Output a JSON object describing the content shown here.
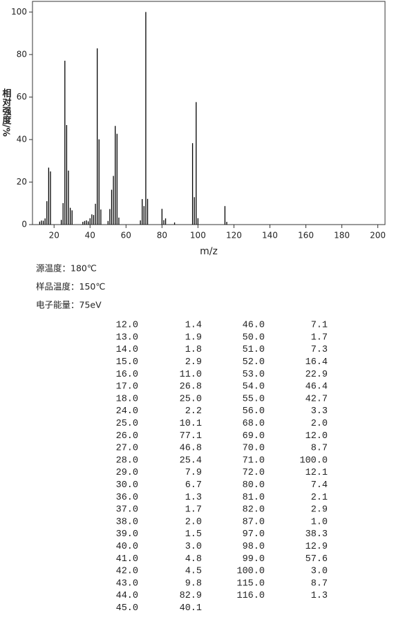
{
  "chart_data": {
    "type": "bar",
    "y_label": "相对强度/%",
    "x_label": "m/z",
    "color": "#000000",
    "xlim": [
      8,
      204
    ],
    "ylim": [
      0,
      105
    ],
    "xticks": [
      20,
      40,
      60,
      80,
      100,
      120,
      140,
      160,
      180,
      200
    ],
    "yticks": [
      0,
      20,
      40,
      60,
      80,
      100
    ],
    "x": [
      12,
      13,
      14,
      15,
      16,
      17,
      18,
      24,
      25,
      26,
      27,
      28,
      29,
      30,
      36,
      37,
      38,
      39,
      40,
      41,
      42,
      43,
      44,
      45,
      46,
      50,
      51,
      52,
      53,
      54,
      55,
      56,
      68,
      69,
      70,
      71,
      72,
      80,
      81,
      82,
      87,
      97,
      98,
      99,
      100,
      115,
      116
    ],
    "values": [
      1.4,
      1.9,
      1.8,
      2.9,
      11.0,
      26.8,
      25.0,
      2.2,
      10.1,
      77.1,
      46.8,
      25.4,
      7.9,
      6.7,
      1.3,
      1.7,
      2.0,
      1.5,
      3.0,
      4.8,
      4.5,
      9.8,
      82.9,
      40.1,
      7.1,
      1.7,
      7.3,
      16.4,
      22.9,
      46.4,
      42.7,
      3.3,
      2.0,
      12.0,
      8.7,
      100.0,
      12.1,
      7.4,
      2.1,
      2.9,
      1.0,
      38.3,
      12.9,
      57.6,
      3.0,
      8.7,
      1.3
    ],
    "x_labels": [
      "12.0",
      "13.0",
      "14.0",
      "15.0",
      "16.0",
      "17.0",
      "18.0",
      "24.0",
      "25.0",
      "26.0",
      "27.0",
      "28.0",
      "29.0",
      "30.0",
      "36.0",
      "37.0",
      "38.0",
      "39.0",
      "40.0",
      "41.0",
      "42.0",
      "43.0",
      "44.0",
      "45.0",
      "46.0",
      "50.0",
      "51.0",
      "52.0",
      "53.0",
      "54.0",
      "55.0",
      "56.0",
      "68.0",
      "69.0",
      "70.0",
      "71.0",
      "72.0",
      "80.0",
      "81.0",
      "82.0",
      "87.0",
      "97.0",
      "98.0",
      "99.0",
      "100.0",
      "115.0",
      "116.0"
    ],
    "value_labels": [
      "1.4",
      "1.9",
      "1.8",
      "2.9",
      "11.0",
      "26.8",
      "25.0",
      "2.2",
      "10.1",
      "77.1",
      "46.8",
      "25.4",
      "7.9",
      "6.7",
      "1.3",
      "1.7",
      "2.0",
      "1.5",
      "3.0",
      "4.8",
      "4.5",
      "9.8",
      "82.9",
      "40.1",
      "7.1",
      "1.7",
      "7.3",
      "16.4",
      "22.9",
      "46.4",
      "42.7",
      "3.3",
      "2.0",
      "12.0",
      "8.7",
      "100.0",
      "12.1",
      "7.4",
      "2.1",
      "2.9",
      "1.0",
      "38.3",
      "12.9",
      "57.6",
      "3.0",
      "8.7",
      "1.3"
    ],
    "conditions": [
      "源温度：180℃",
      "样品温度：150℃",
      "电子能量：75eV"
    ]
  }
}
